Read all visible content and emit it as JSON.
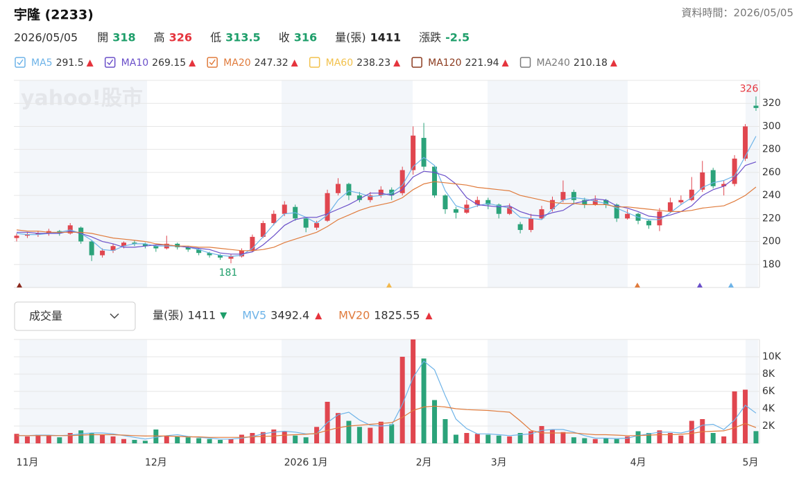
{
  "header": {
    "title": "宇隆 (2233)",
    "data_time": "資料時間：2026/05/05",
    "watermark": "yahoo!股市"
  },
  "quote": {
    "date": "2026/05/05",
    "items": [
      {
        "label": "開",
        "value": 318,
        "color": "#1e9e6a"
      },
      {
        "label": "高",
        "value": 326,
        "color": "#e5343d"
      },
      {
        "label": "低",
        "value": 313.5,
        "color": "#1e9e6a"
      },
      {
        "label": "收",
        "value": 316,
        "color": "#1e9e6a"
      },
      {
        "label": "量(張)",
        "value": 1411,
        "color": "#222222"
      },
      {
        "label": "漲跌",
        "value": -2.5,
        "color": "#1e9e6a"
      }
    ]
  },
  "volume_header": {
    "selector": "成交量"
  },
  "chart_data": [
    {
      "type": "candlestick",
      "up_color": "#e0464f",
      "down_color": "#2ba37a",
      "categories": [
        null,
        "11月",
        null,
        null,
        null,
        null,
        null,
        null,
        null,
        null,
        null,
        null,
        null,
        "12月",
        null,
        null,
        null,
        null,
        null,
        null,
        null,
        null,
        null,
        null,
        null,
        null,
        null,
        "2026 1月",
        null,
        null,
        null,
        null,
        null,
        null,
        null,
        null,
        null,
        null,
        "2月",
        null,
        null,
        null,
        null,
        null,
        null,
        "3月",
        null,
        null,
        null,
        null,
        null,
        null,
        null,
        null,
        null,
        null,
        null,
        null,
        "4月",
        null,
        null,
        null,
        null,
        null,
        null,
        null,
        null,
        null,
        null,
        "5月"
      ],
      "candles": [
        [
          203,
          207,
          200,
          205
        ],
        [
          205,
          208,
          203,
          206
        ],
        [
          206,
          209,
          204,
          207
        ],
        [
          207,
          211,
          205,
          209
        ],
        [
          209,
          210,
          205,
          207
        ],
        [
          207,
          216,
          206,
          214
        ],
        [
          212,
          213,
          198,
          200
        ],
        [
          200,
          201,
          183,
          188
        ],
        [
          188,
          194,
          186,
          192
        ],
        [
          192,
          198,
          190,
          196
        ],
        [
          196,
          200,
          194,
          199
        ],
        [
          199,
          201,
          196,
          198
        ],
        [
          198,
          199,
          194,
          196
        ],
        [
          196,
          197,
          191,
          194
        ],
        [
          194,
          205,
          193,
          198
        ],
        [
          198,
          199,
          193,
          195
        ],
        [
          195,
          196,
          191,
          193
        ],
        [
          193,
          194,
          188,
          190
        ],
        [
          190,
          191,
          186,
          188
        ],
        [
          188,
          189,
          184,
          186
        ],
        [
          185,
          189,
          181,
          187
        ],
        [
          187,
          194,
          186,
          192
        ],
        [
          192,
          206,
          191,
          204
        ],
        [
          204,
          218,
          203,
          216
        ],
        [
          216,
          227,
          214,
          224
        ],
        [
          224,
          235,
          222,
          232
        ],
        [
          230,
          232,
          218,
          220
        ],
        [
          220,
          221,
          208,
          212
        ],
        [
          212,
          218,
          210,
          216
        ],
        [
          218,
          245,
          217,
          242
        ],
        [
          242,
          255,
          240,
          250
        ],
        [
          250,
          251,
          236,
          240
        ],
        [
          240,
          243,
          234,
          236
        ],
        [
          236,
          243,
          234,
          240
        ],
        [
          240,
          248,
          238,
          245
        ],
        [
          245,
          247,
          236,
          240
        ],
        [
          242,
          265,
          240,
          262
        ],
        [
          262,
          300,
          258,
          292
        ],
        [
          290,
          303,
          262,
          265
        ],
        [
          265,
          266,
          238,
          240
        ],
        [
          240,
          241,
          224,
          228
        ],
        [
          228,
          230,
          220,
          225
        ],
        [
          225,
          236,
          224,
          232
        ],
        [
          232,
          239,
          230,
          236
        ],
        [
          236,
          238,
          228,
          232
        ],
        [
          232,
          233,
          220,
          224
        ],
        [
          224,
          233,
          223,
          230
        ],
        [
          215,
          217,
          207,
          210
        ],
        [
          210,
          224,
          208,
          220
        ],
        [
          220,
          231,
          219,
          228
        ],
        [
          228,
          239,
          226,
          236
        ],
        [
          236,
          253,
          234,
          243
        ],
        [
          243,
          245,
          232,
          236
        ],
        [
          236,
          238,
          229,
          232
        ],
        [
          232,
          240,
          231,
          236
        ],
        [
          236,
          237,
          229,
          232
        ],
        [
          232,
          233,
          217,
          220
        ],
        [
          220,
          228,
          219,
          224
        ],
        [
          224,
          225,
          215,
          218
        ],
        [
          218,
          219,
          211,
          214
        ],
        [
          214,
          229,
          209,
          226
        ],
        [
          226,
          238,
          225,
          234
        ],
        [
          234,
          240,
          232,
          236
        ],
        [
          236,
          256,
          235,
          245
        ],
        [
          245,
          270,
          243,
          260
        ],
        [
          262,
          264,
          246,
          248
        ],
        [
          248,
          253,
          240,
          250
        ],
        [
          250,
          275,
          248,
          272
        ],
        [
          272,
          302,
          270,
          300
        ],
        [
          318,
          326,
          313.5,
          316
        ]
      ],
      "series": [
        {
          "name": "MA5",
          "color": "#6db3e8",
          "checked": true,
          "values": [
            207,
            206,
            206,
            207,
            208,
            210,
            207,
            201,
            193,
            192,
            196,
            198,
            198,
            196,
            196,
            196,
            195,
            193,
            190,
            188,
            187,
            188,
            194,
            204,
            215,
            224,
            225,
            221,
            216,
            223,
            236,
            244,
            242,
            239,
            240,
            242,
            249,
            265,
            273,
            266,
            244,
            231,
            228,
            231,
            233,
            231,
            229,
            221,
            220,
            219,
            228,
            236,
            238,
            237,
            235,
            233,
            229,
            225,
            221,
            219,
            219,
            225,
            232,
            238,
            247,
            251,
            253,
            257,
            274,
            291.5
          ]
        },
        {
          "name": "MA10",
          "color": "#6a4fc9",
          "checked": true,
          "values": [
            208,
            208,
            207,
            207,
            207,
            209,
            207,
            204,
            200,
            198,
            195,
            195,
            196,
            197,
            197,
            196,
            195,
            194,
            193,
            190,
            189,
            189,
            191,
            197,
            205,
            214,
            219,
            221,
            221,
            224,
            228,
            232,
            237,
            242,
            242,
            240,
            245,
            256,
            261,
            260,
            257,
            250,
            238,
            232,
            231,
            230,
            231,
            226,
            223,
            222,
            225,
            227,
            233,
            235,
            237,
            236,
            231,
            229,
            226,
            222,
            221,
            223,
            226,
            231,
            240,
            245,
            248,
            255,
            266,
            269.15
          ]
        },
        {
          "name": "MA20",
          "color": "#e07b3c",
          "checked": true,
          "values": [
            210,
            209,
            209,
            208,
            208,
            208,
            208,
            207,
            205,
            203,
            202,
            201,
            200,
            198,
            197,
            196,
            196,
            195,
            195,
            194,
            193,
            192,
            192,
            193,
            195,
            199,
            202,
            205,
            208,
            213,
            219,
            223,
            227,
            230,
            232,
            234,
            238,
            245,
            250,
            252,
            251,
            250,
            249,
            247,
            246,
            245,
            244,
            240,
            238,
            236,
            234,
            233,
            233,
            232,
            232,
            232,
            230,
            230,
            229,
            228,
            227,
            226,
            226,
            227,
            229,
            230,
            231,
            235,
            240,
            247.32
          ]
        },
        {
          "name": "MA60",
          "color": "#f2c14b",
          "checked": false,
          "last": 238.23
        },
        {
          "name": "MA120",
          "color": "#8b3a1e",
          "checked": false,
          "last": 221.94
        },
        {
          "name": "MA240",
          "color": "#7a7a7a",
          "checked": false,
          "last": 210.18
        }
      ],
      "ylim": [
        160,
        340
      ],
      "yticks": [
        180,
        200,
        220,
        240,
        260,
        280,
        300,
        320
      ],
      "grid": true
    },
    {
      "type": "bar",
      "value_name": "量(張)",
      "values": [
        1100,
        800,
        1000,
        900,
        700,
        1200,
        1500,
        1200,
        1000,
        800,
        500,
        400,
        300,
        1600,
        900,
        800,
        700,
        600,
        500,
        400,
        500,
        1000,
        1200,
        1300,
        1600,
        1400,
        900,
        700,
        1900,
        4800,
        3500,
        2600,
        1900,
        1800,
        2500,
        2200,
        10000,
        12000,
        9800,
        5000,
        2800,
        1000,
        1200,
        1100,
        1000,
        900,
        800,
        1200,
        1400,
        2000,
        1600,
        1300,
        700,
        600,
        500,
        600,
        500,
        800,
        1400,
        1200,
        1500,
        1200,
        900,
        2600,
        2800,
        1200,
        800,
        6000,
        6200,
        1411
      ],
      "series": [
        {
          "name": "MV5",
          "color": "#6db3e8",
          "values": [
            900,
            900,
            950,
            950,
            900,
            950,
            1100,
            1200,
            1200,
            1100,
            900,
            700,
            500,
            700,
            900,
            1000,
            800,
            700,
            600,
            500,
            500,
            600,
            800,
            1100,
            1300,
            1400,
            1300,
            1100,
            1100,
            2400,
            3300,
            3600,
            2700,
            2100,
            2000,
            2100,
            4500,
            7600,
            9500,
            8500,
            5500,
            2800,
            1700,
            1100,
            1100,
            1000,
            900,
            1000,
            1100,
            1500,
            1600,
            1600,
            1300,
            900,
            600,
            600,
            550,
            600,
            900,
            1100,
            1300,
            1300,
            1200,
            1500,
            2100,
            2200,
            1600,
            2700,
            4400,
            3492.4
          ]
        },
        {
          "name": "MV20",
          "color": "#e07b3c",
          "values": [
            900,
            900,
            900,
            900,
            900,
            900,
            950,
            1000,
            1000,
            1000,
            950,
            900,
            850,
            850,
            850,
            800,
            750,
            750,
            700,
            700,
            700,
            700,
            750,
            800,
            850,
            950,
            1000,
            1050,
            1150,
            1500,
            1800,
            2000,
            2100,
            2200,
            2300,
            2400,
            3000,
            3800,
            4200,
            4300,
            4200,
            4000,
            3900,
            3850,
            3800,
            3700,
            3600,
            2600,
            1500,
            1200,
            1200,
            1200,
            1200,
            1100,
            1000,
            1000,
            950,
            900,
            900,
            950,
            1000,
            1000,
            1050,
            1150,
            1350,
            1400,
            1450,
            1800,
            2300,
            1825.55
          ]
        }
      ],
      "ylim": [
        0,
        12000
      ],
      "yticks": [
        {
          "value": 2000,
          "label": "2K"
        },
        {
          "value": 4000,
          "label": "4K"
        },
        {
          "value": 6000,
          "label": "6K"
        },
        {
          "value": 8000,
          "label": "8K"
        },
        {
          "value": 10000,
          "label": "10K"
        }
      ],
      "grid": true
    }
  ]
}
